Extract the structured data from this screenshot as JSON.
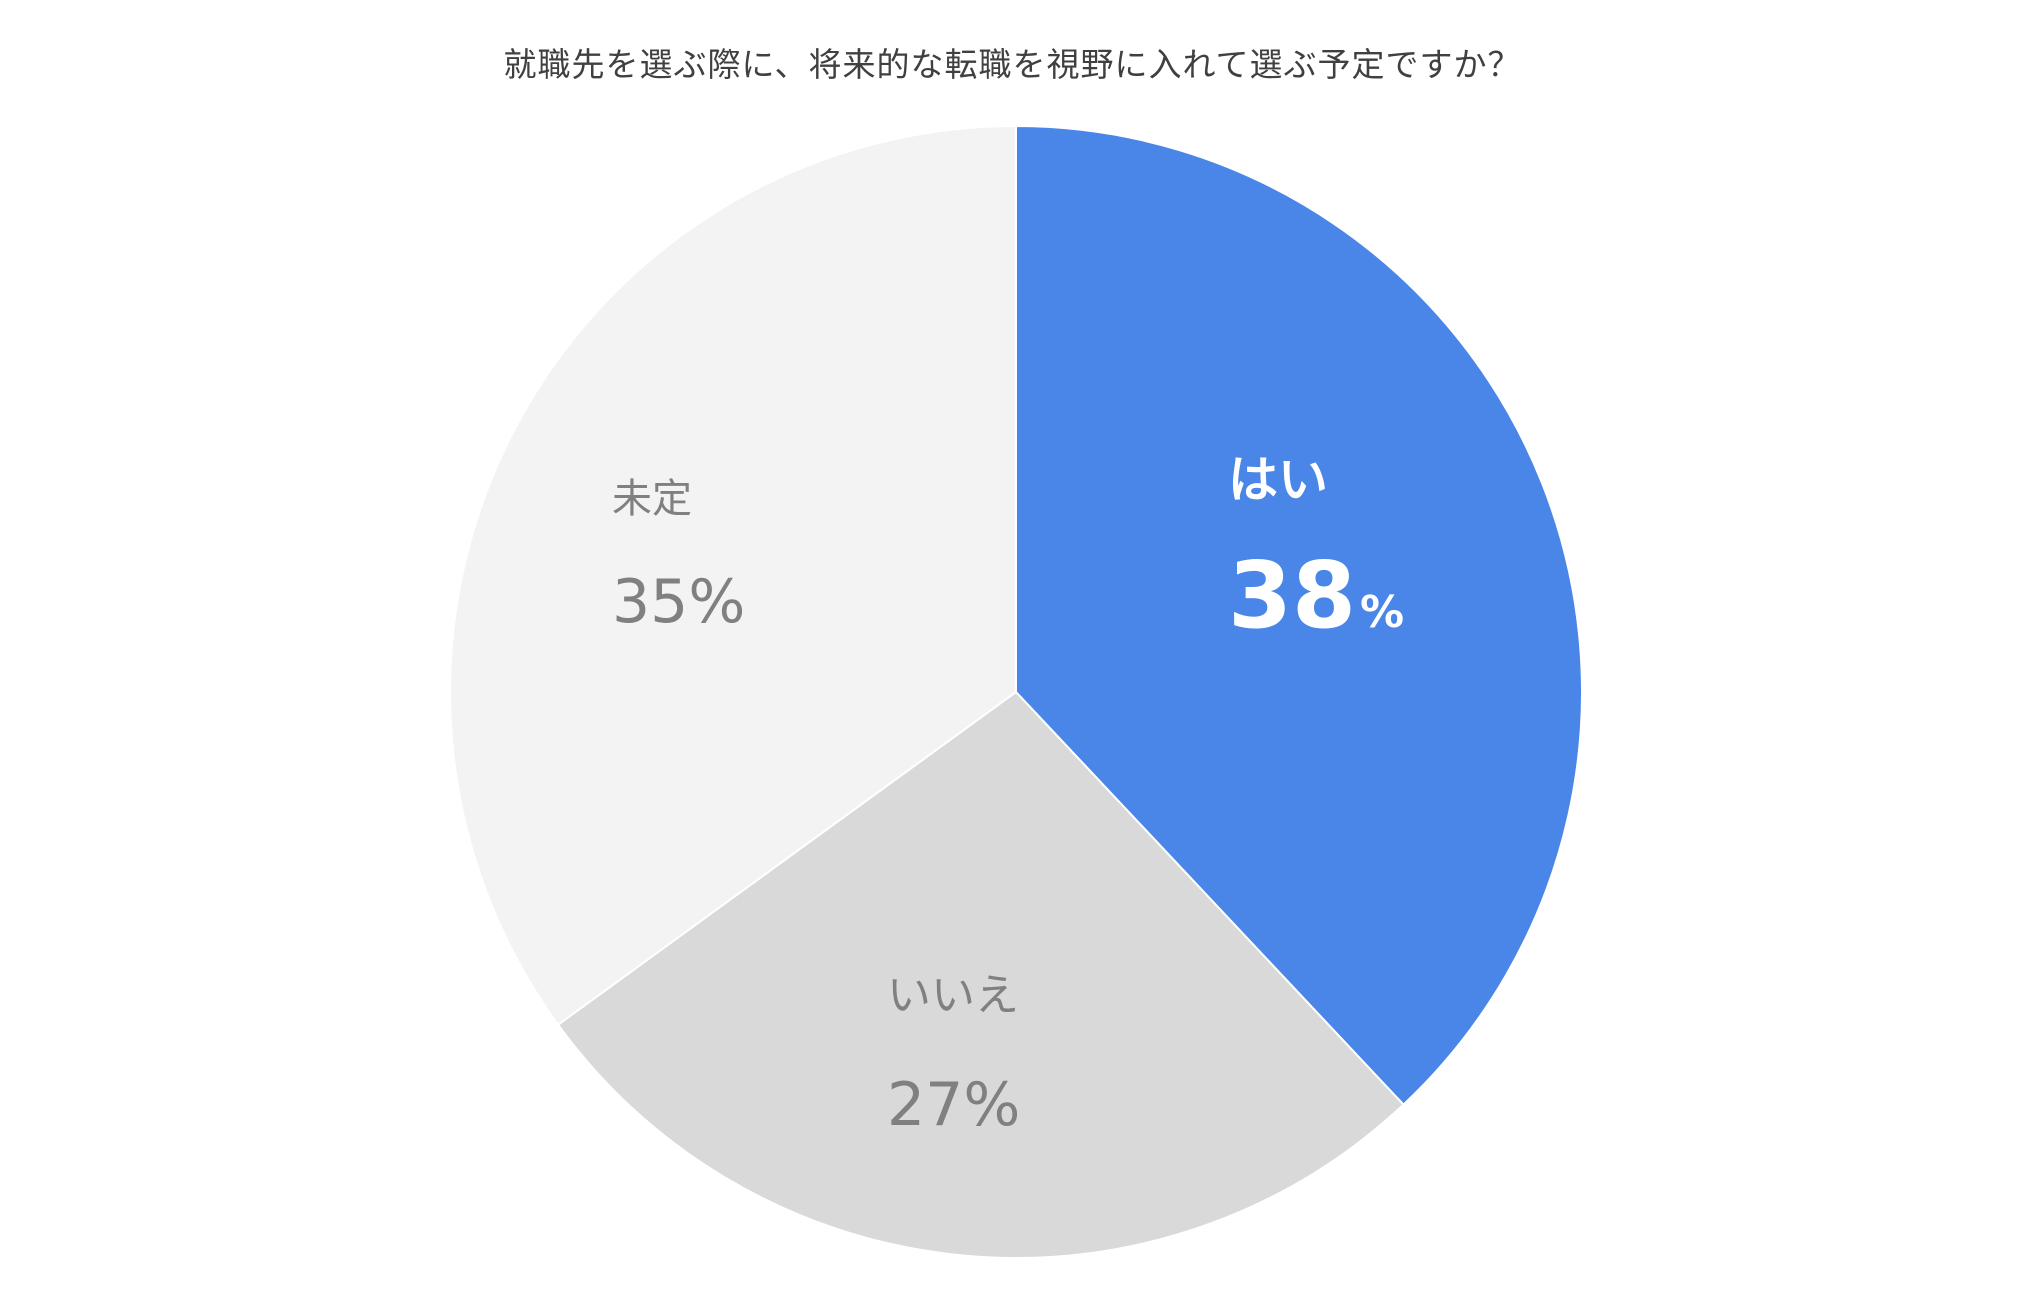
{
  "chart_data": {
    "type": "pie",
    "title": "就職先を選ぶ際に、将来的な転職を視野に入れて選ぶ予定ですか？",
    "slices": [
      {
        "label": "はい",
        "value": 38,
        "value_text": "38",
        "unit": "%",
        "color": "#4A86E8",
        "text_color": "#ffffff"
      },
      {
        "label": "いいえ",
        "value": 27,
        "value_text": "27%",
        "unit": "",
        "color": "#D9D9D9",
        "text_color": "#808080"
      },
      {
        "label": "未定",
        "value": 35,
        "value_text": "35%",
        "unit": "",
        "color": "#F3F3F3",
        "text_color": "#808080"
      }
    ],
    "start_angle": "12 o'clock",
    "direction": "clockwise",
    "legend": "none"
  }
}
